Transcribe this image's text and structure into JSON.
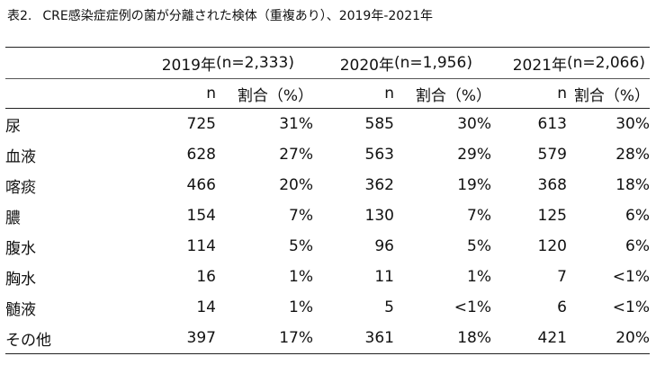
{
  "caption": {
    "label": "表2.",
    "text": "CRE感染症症例の菌が分離された検体（重複あり）、2019年-2021年"
  },
  "header": {
    "years": [
      {
        "year": "2019年",
        "n": "(n=2,333)"
      },
      {
        "year": "2020年",
        "n": "(n=1,956)"
      },
      {
        "year": "2021年",
        "n": "(n=2,066)"
      }
    ],
    "sub": {
      "n": "n",
      "pct": "割合（%）"
    }
  },
  "rows": [
    {
      "label": "尿",
      "v": [
        "725",
        "31%",
        "585",
        "30%",
        "613",
        "30%"
      ]
    },
    {
      "label": "血液",
      "v": [
        "628",
        "27%",
        "563",
        "29%",
        "579",
        "28%"
      ]
    },
    {
      "label": "喀痰",
      "v": [
        "466",
        "20%",
        "362",
        "19%",
        "368",
        "18%"
      ]
    },
    {
      "label": "膿",
      "v": [
        "154",
        "7%",
        "130",
        "7%",
        "125",
        "6%"
      ]
    },
    {
      "label": "腹水",
      "v": [
        "114",
        "5%",
        "96",
        "5%",
        "120",
        "6%"
      ]
    },
    {
      "label": "胸水",
      "v": [
        "16",
        "1%",
        "11",
        "1%",
        "7",
        "<1%"
      ]
    },
    {
      "label": "髄液",
      "v": [
        "14",
        "1%",
        "5",
        "<1%",
        "6",
        "<1%"
      ]
    },
    {
      "label": "その他",
      "v": [
        "397",
        "17%",
        "361",
        "18%",
        "421",
        "20%"
      ]
    }
  ]
}
